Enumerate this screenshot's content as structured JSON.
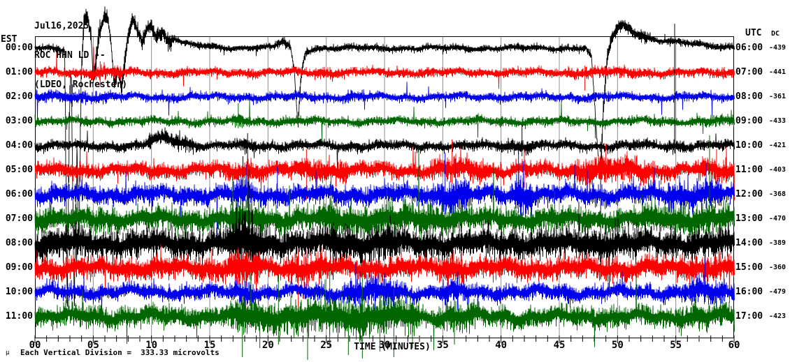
{
  "header": {
    "date": "Jul16,2025",
    "station": "ROC HHN LD --",
    "location": "(LDEO, Rochester)"
  },
  "axes": {
    "left_header": "EST",
    "right_header": "UTC",
    "dc_header": "DC",
    "x_label": "TIME (MINUTES)",
    "x_ticks": [
      "00",
      "05",
      "10",
      "15",
      "20",
      "25",
      "30",
      "35",
      "40",
      "45",
      "50",
      "55",
      "60"
    ],
    "x_min": 0,
    "x_max": 60,
    "gridline_every_minutes": 5,
    "minor_tick_every_minutes": 1
  },
  "footer": {
    "scale_note": "Each Vertical Division =  333.33 microvolts",
    "scale_marker": "µ"
  },
  "colors": {
    "black": "#000000",
    "red": "#ff0000",
    "blue": "#0000ee",
    "green": "#006600",
    "grid": "#8c8c8c",
    "frame": "#000000",
    "text": "#000000"
  },
  "chart_data": {
    "type": "line",
    "title": "ROC HHN LD -- (LDEO, Rochester) helicorder, Jul16,2025",
    "xlabel": "TIME (MINUTES)",
    "x_range": [
      0,
      60
    ],
    "grid": true,
    "legend": "none",
    "vertical_division_microvolts": 333.33,
    "rows": [
      {
        "est": "00:00",
        "utc": "06:00",
        "dc": "-439",
        "color": "black",
        "seed": 101,
        "amp": 6,
        "events": [
          [
            2.6,
            12,
            2.2
          ],
          [
            21,
            23.5,
            1.3
          ],
          [
            47.5,
            53,
            1.8
          ]
        ],
        "offsets": [
          [
            0,
            0
          ],
          [
            2.55,
            2
          ],
          [
            2.75,
            380
          ],
          [
            2.95,
            80
          ],
          [
            3.1,
            20
          ],
          [
            3.35,
            370
          ],
          [
            3.6,
            150
          ],
          [
            3.75,
            300
          ],
          [
            3.95,
            40
          ],
          [
            4.2,
            -40
          ],
          [
            4.5,
            -44
          ],
          [
            4.8,
            -20
          ],
          [
            5.0,
            46
          ],
          [
            5.2,
            20
          ],
          [
            5.5,
            -20
          ],
          [
            5.9,
            -40
          ],
          [
            6.2,
            -42
          ],
          [
            6.5,
            -10
          ],
          [
            6.8,
            55
          ],
          [
            7.1,
            30
          ],
          [
            7.4,
            56
          ],
          [
            7.7,
            20
          ],
          [
            8.0,
            -20
          ],
          [
            8.4,
            -38
          ],
          [
            8.8,
            -25
          ],
          [
            9.2,
            -10
          ],
          [
            9.6,
            -30
          ],
          [
            10.0,
            -34
          ],
          [
            10.4,
            -15
          ],
          [
            10.9,
            -25
          ],
          [
            11.4,
            -10
          ],
          [
            12.0,
            -14
          ],
          [
            12.8,
            -6
          ],
          [
            14,
            -3
          ],
          [
            16,
            -1
          ],
          [
            20.5,
            -1
          ],
          [
            21.2,
            -9
          ],
          [
            21.9,
            -2
          ],
          [
            22.25,
            35
          ],
          [
            22.55,
            112
          ],
          [
            22.85,
            35
          ],
          [
            23.2,
            5
          ],
          [
            24,
            0
          ],
          [
            47.3,
            0
          ],
          [
            47.75,
            14
          ],
          [
            48.2,
            130
          ],
          [
            48.5,
            190
          ],
          [
            48.8,
            80
          ],
          [
            49.1,
            15
          ],
          [
            49.5,
            -14
          ],
          [
            49.9,
            -26
          ],
          [
            50.4,
            -34
          ],
          [
            51.0,
            -28
          ],
          [
            51.8,
            -20
          ],
          [
            53,
            -13
          ],
          [
            55,
            -8
          ],
          [
            57.5,
            -4
          ],
          [
            60,
            -2
          ]
        ],
        "spikes": [
          [
            48.55,
            0,
            160
          ]
        ]
      },
      {
        "est": "01:00",
        "utc": "07:00",
        "dc": "-441",
        "color": "red",
        "seed": 102,
        "amp": 7.5,
        "events": [
          [
            4.5,
            7.5,
            1.5
          ],
          [
            24,
            27,
            1.2
          ],
          [
            46,
            52,
            1.25
          ]
        ],
        "offsets": [],
        "spikes": [
          [
            5.6,
            16,
            20
          ],
          [
            47.2,
            10,
            26
          ]
        ]
      },
      {
        "est": "02:00",
        "utc": "08:00",
        "dc": "-361",
        "color": "blue",
        "seed": 103,
        "amp": 7.5,
        "events": [
          [
            0,
            6.5,
            1.35
          ],
          [
            26,
            29,
            1.2
          ]
        ],
        "offsets": [],
        "spikes": [
          [
            3.2,
            18,
            14
          ]
        ]
      },
      {
        "est": "03:00",
        "utc": "09:00",
        "dc": "-433",
        "color": "green",
        "seed": 104,
        "amp": 7.5,
        "events": [
          [
            16.8,
            18.5,
            1.5
          ],
          [
            56,
            60,
            1.3
          ]
        ],
        "offsets": [],
        "spikes": [
          [
            17.45,
            26,
            10
          ]
        ]
      },
      {
        "est": "04:00",
        "utc": "10:00",
        "dc": "-421",
        "color": "black",
        "seed": 105,
        "amp": 8.5,
        "events": [
          [
            9.5,
            14,
            1.5
          ],
          [
            17.5,
            19,
            1.5
          ],
          [
            40,
            43,
            1.35
          ],
          [
            54,
            56,
            1.3
          ]
        ],
        "offsets": [
          [
            0,
            0
          ],
          [
            9.3,
            0
          ],
          [
            9.8,
            -5
          ],
          [
            10.4,
            -9
          ],
          [
            11.2,
            -10
          ],
          [
            12.2,
            -7
          ],
          [
            13.2,
            -3
          ],
          [
            14.5,
            0
          ],
          [
            60,
            0
          ]
        ],
        "spikes": [
          [
            18.25,
            18,
            62
          ],
          [
            41.8,
            30,
            15
          ],
          [
            54.9,
            175,
            10
          ]
        ]
      },
      {
        "est": "05:00",
        "utc": "11:00",
        "dc": "-403",
        "color": "red",
        "seed": 106,
        "amp": 13,
        "events": [
          [
            16,
            20,
            1.3
          ],
          [
            22,
            27,
            1.5
          ],
          [
            34,
            39,
            1.45
          ],
          [
            46,
            53,
            1.6
          ],
          [
            56.5,
            60,
            1.45
          ]
        ],
        "offsets": [],
        "spikes": [
          [
            23.3,
            30,
            42
          ],
          [
            35.8,
            44,
            20
          ],
          [
            42.0,
            30,
            25
          ],
          [
            49.0,
            38,
            18
          ],
          [
            58.5,
            30,
            20
          ]
        ]
      },
      {
        "est": "06:00",
        "utc": "12:00",
        "dc": "-368",
        "color": "blue",
        "seed": 107,
        "amp": 16,
        "events": [
          [
            17,
            19,
            1.4
          ],
          [
            34.5,
            37.5,
            1.9
          ],
          [
            40.8,
            42.8,
            2.0
          ],
          [
            54,
            59,
            1.5
          ]
        ],
        "offsets": [],
        "spikes": [
          [
            20.8,
            40,
            20
          ],
          [
            35.2,
            60,
            28
          ],
          [
            36.1,
            52,
            30
          ],
          [
            41.5,
            62,
            26
          ],
          [
            41.9,
            48,
            30
          ],
          [
            57.6,
            45,
            20
          ]
        ]
      },
      {
        "est": "07:00",
        "utc": "13:00",
        "dc": "-470",
        "color": "green",
        "seed": 108,
        "amp": 19,
        "events": [
          [
            16.5,
            20,
            1.35
          ],
          [
            24,
            36,
            1.35
          ],
          [
            52,
            60,
            1.3
          ]
        ],
        "offsets": [],
        "spikes": [
          [
            18.3,
            40,
            80
          ],
          [
            25.4,
            55,
            30
          ],
          [
            30.2,
            45,
            35
          ],
          [
            44.6,
            40,
            30
          ],
          [
            57.9,
            120,
            30
          ]
        ]
      },
      {
        "est": "08:00",
        "utc": "14:00",
        "dc": "-389",
        "color": "black",
        "seed": 109,
        "amp": 24,
        "events": [
          [
            0,
            5,
            1.15
          ],
          [
            16.5,
            19.5,
            1.9
          ],
          [
            25,
            31,
            1.25
          ],
          [
            47,
            51,
            1.15
          ]
        ],
        "offsets": [],
        "spikes": [
          [
            17.85,
            125,
            25
          ],
          [
            18.35,
            95,
            20
          ],
          [
            18.6,
            70,
            30
          ],
          [
            30.5,
            40,
            30
          ],
          [
            49.8,
            35,
            25
          ]
        ]
      },
      {
        "est": "09:00",
        "utc": "15:00",
        "dc": "-360",
        "color": "red",
        "seed": 110,
        "amp": 18,
        "events": [
          [
            16.5,
            19.5,
            1.6
          ],
          [
            21.5,
            25,
            1.45
          ],
          [
            34.5,
            37,
            1.2
          ],
          [
            55,
            60,
            1.15
          ]
        ],
        "offsets": [],
        "spikes": [
          [
            18.1,
            25,
            70
          ],
          [
            22.6,
            20,
            58
          ],
          [
            23.1,
            15,
            45
          ],
          [
            35.5,
            15,
            40
          ]
        ]
      },
      {
        "est": "10:00",
        "utc": "16:00",
        "dc": "-479",
        "color": "blue",
        "seed": 111,
        "amp": 13,
        "events": [
          [
            17,
            19,
            1.5
          ],
          [
            26.5,
            31.5,
            1.8
          ],
          [
            34.8,
            37.2,
            1.5
          ],
          [
            45,
            46.5,
            1.3
          ],
          [
            56,
            59.5,
            1.6
          ]
        ],
        "offsets": [],
        "spikes": [
          [
            18.0,
            16,
            42
          ],
          [
            27.9,
            30,
            25
          ],
          [
            30.0,
            28,
            22
          ],
          [
            36.3,
            30,
            18
          ],
          [
            57.5,
            48,
            14
          ]
        ]
      },
      {
        "est": "11:00",
        "utc": "17:00",
        "dc": "-423",
        "color": "green",
        "seed": 112,
        "amp": 17,
        "events": [
          [
            16.5,
            33,
            1.7
          ],
          [
            35,
            38,
            1.3
          ],
          [
            55,
            60,
            1.25
          ]
        ],
        "offsets": [],
        "spikes": [
          [
            17.8,
            20,
            58
          ],
          [
            19.3,
            15,
            45
          ],
          [
            20.9,
            60,
            40
          ],
          [
            23.4,
            25,
            62
          ],
          [
            25.3,
            70,
            45
          ],
          [
            26.9,
            30,
            55
          ],
          [
            28.1,
            62,
            60
          ],
          [
            29.6,
            30,
            50
          ],
          [
            30.8,
            40,
            58
          ],
          [
            32.4,
            20,
            45
          ],
          [
            36.0,
            25,
            40
          ]
        ]
      }
    ]
  }
}
